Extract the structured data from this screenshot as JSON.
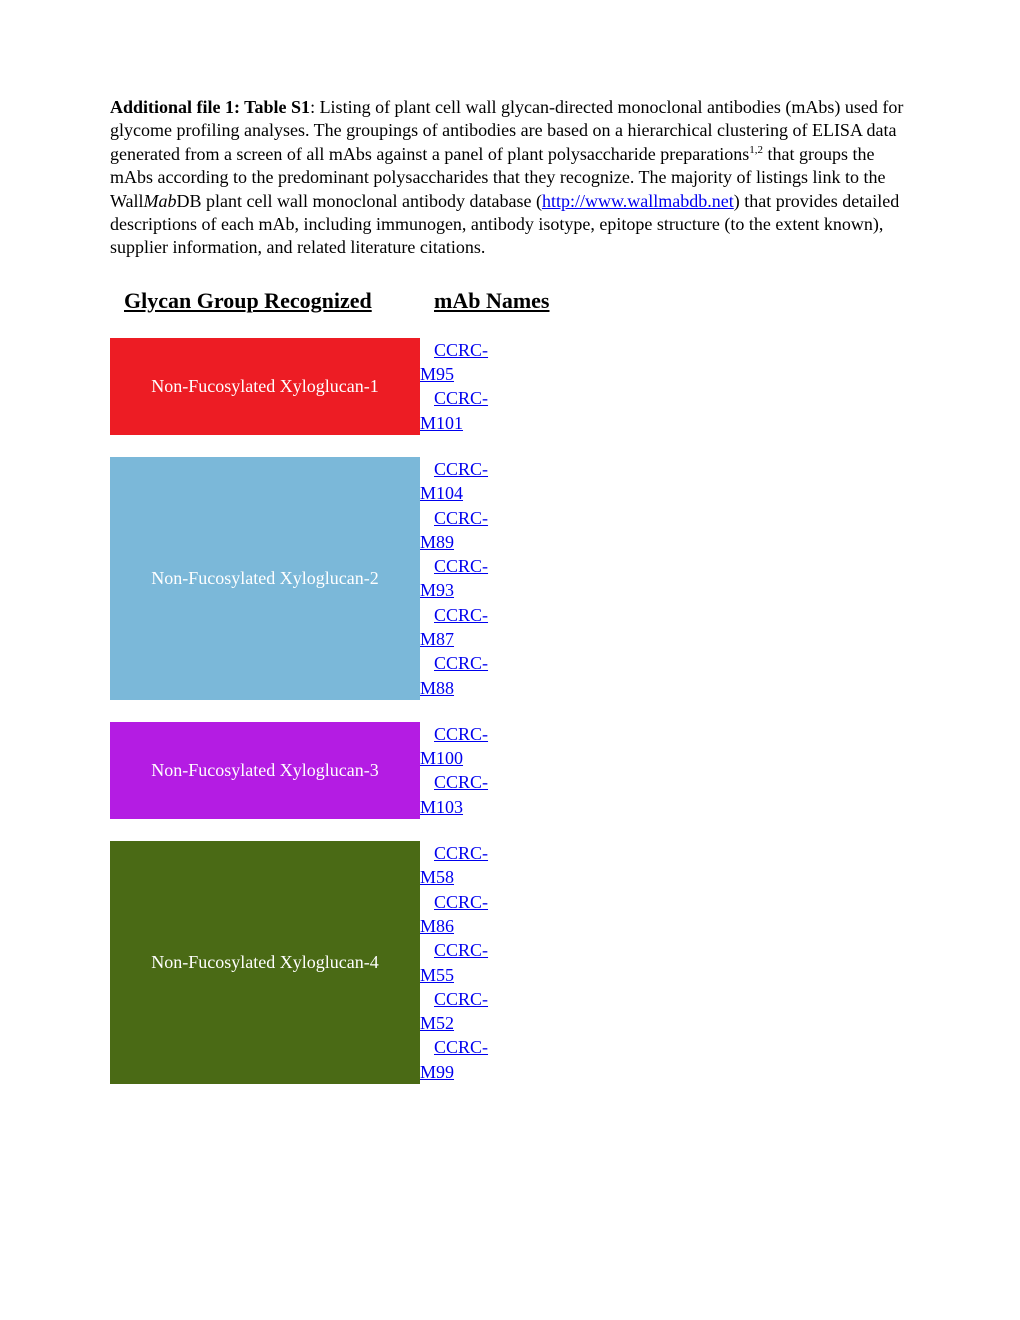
{
  "intro": {
    "bold_prefix": "Additional file 1: Table S1",
    "text_before_sup": ": Listing of plant cell wall glycan-directed monoclonal antibodies (mAbs) used for glycome profiling analyses.  The groupings of antibodies are based on a hierarchical clustering of ELISA data generated from a screen of all mAbs against a panel of plant polysaccharide preparations",
    "sup": "1,2",
    "text_after_sup_before_link": " that groups the mAbs according to the predominant polysaccharides that they recognize.  The majority of listings link to the Wall",
    "italic": "Mab",
    "text_after_italic": "DB plant cell wall monoclonal antibody database (",
    "link_text": "http://www.wallmabdb.net",
    "text_after_link": ") that provides detailed descriptions of each mAb, including immunogen, antibody isotype, epitope structure (to the extent known), supplier information, and related literature citations."
  },
  "headers": {
    "left": "Glycan Group Recognized",
    "right": "mAb Names"
  },
  "groups": [
    {
      "label": "Non-Fucosylated Xyloglucan-1",
      "bg_color": "#ed1c24",
      "text_color": "#ffffff",
      "mabs": [
        "CCRC-M95",
        "CCRC-M101"
      ]
    },
    {
      "label": "Non-Fucosylated Xyloglucan-2",
      "bg_color": "#7bb8d9",
      "text_color": "#ffffff",
      "mabs": [
        "CCRC-M104",
        "CCRC-M89",
        "CCRC-M93",
        "CCRC-M87",
        "CCRC-M88"
      ]
    },
    {
      "label": "Non-Fucosylated Xyloglucan-3",
      "bg_color": "#b41ce3",
      "text_color": "#ffffff",
      "mabs": [
        "CCRC-M100",
        "CCRC-M103"
      ]
    },
    {
      "label": "Non-Fucosylated Xyloglucan-4",
      "bg_color": "#4a6a15",
      "text_color": "#ffffff",
      "mabs": [
        "CCRC-M58",
        "CCRC-M86",
        "CCRC-M55",
        "CCRC-M52",
        "CCRC-M99"
      ]
    }
  ]
}
